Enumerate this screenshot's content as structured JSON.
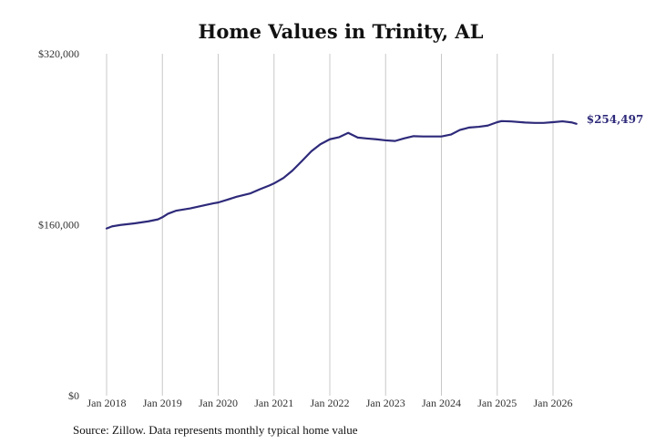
{
  "chart_data": {
    "type": "line",
    "title": "Home Values in Trinity, AL",
    "xlabel": "",
    "ylabel": "",
    "ylim": [
      0,
      320000
    ],
    "yticks": [
      {
        "value": 0,
        "label": "$0"
      },
      {
        "value": 160000,
        "label": "$160,000"
      },
      {
        "value": 320000,
        "label": "$320,000"
      }
    ],
    "xticks": [
      {
        "value": 2018.0,
        "label": "Jan 2018"
      },
      {
        "value": 2019.0,
        "label": "Jan 2019"
      },
      {
        "value": 2020.0,
        "label": "Jan 2020"
      },
      {
        "value": 2021.0,
        "label": "Jan 2021"
      },
      {
        "value": 2022.0,
        "label": "Jan 2022"
      },
      {
        "value": 2023.0,
        "label": "Jan 2023"
      },
      {
        "value": 2024.0,
        "label": "Jan 2024"
      },
      {
        "value": 2025.0,
        "label": "Jan 2025"
      },
      {
        "value": 2026.0,
        "label": "Jan 2026"
      }
    ],
    "xlim": [
      2017.75,
      2026.75
    ],
    "grid": "vertical",
    "series": [
      {
        "color": "#2e2a7a",
        "points": [
          [
            2018.0,
            156500
          ],
          [
            2018.1,
            158500
          ],
          [
            2018.25,
            159800
          ],
          [
            2018.5,
            161300
          ],
          [
            2018.75,
            163200
          ],
          [
            2018.92,
            165000
          ],
          [
            2019.0,
            167000
          ],
          [
            2019.1,
            170300
          ],
          [
            2019.25,
            173200
          ],
          [
            2019.5,
            175300
          ],
          [
            2019.75,
            178200
          ],
          [
            2019.92,
            180100
          ],
          [
            2020.0,
            180800
          ],
          [
            2020.17,
            183500
          ],
          [
            2020.33,
            186200
          ],
          [
            2020.58,
            189400
          ],
          [
            2020.75,
            193300
          ],
          [
            2020.92,
            196800
          ],
          [
            2021.0,
            198700
          ],
          [
            2021.17,
            203800
          ],
          [
            2021.33,
            210700
          ],
          [
            2021.5,
            219600
          ],
          [
            2021.67,
            228800
          ],
          [
            2021.83,
            235300
          ],
          [
            2022.0,
            240000
          ],
          [
            2022.17,
            242000
          ],
          [
            2022.33,
            246000
          ],
          [
            2022.5,
            241600
          ],
          [
            2022.67,
            240700
          ],
          [
            2022.83,
            240000
          ],
          [
            2023.0,
            239000
          ],
          [
            2023.17,
            238400
          ],
          [
            2023.33,
            240800
          ],
          [
            2023.5,
            242900
          ],
          [
            2023.67,
            242600
          ],
          [
            2023.83,
            242600
          ],
          [
            2024.0,
            242600
          ],
          [
            2024.17,
            244400
          ],
          [
            2024.33,
            248700
          ],
          [
            2024.5,
            251000
          ],
          [
            2024.67,
            251700
          ],
          [
            2024.83,
            252800
          ],
          [
            2025.0,
            256000
          ],
          [
            2025.08,
            257000
          ],
          [
            2025.25,
            256700
          ],
          [
            2025.5,
            255700
          ],
          [
            2025.67,
            255300
          ],
          [
            2025.83,
            255300
          ],
          [
            2026.0,
            256000
          ],
          [
            2026.17,
            256800
          ],
          [
            2026.33,
            255800
          ],
          [
            2026.42,
            254497
          ]
        ],
        "end_label": "$254,497"
      }
    ]
  },
  "source_note": "Source: Zillow. Data represents monthly typical home value"
}
